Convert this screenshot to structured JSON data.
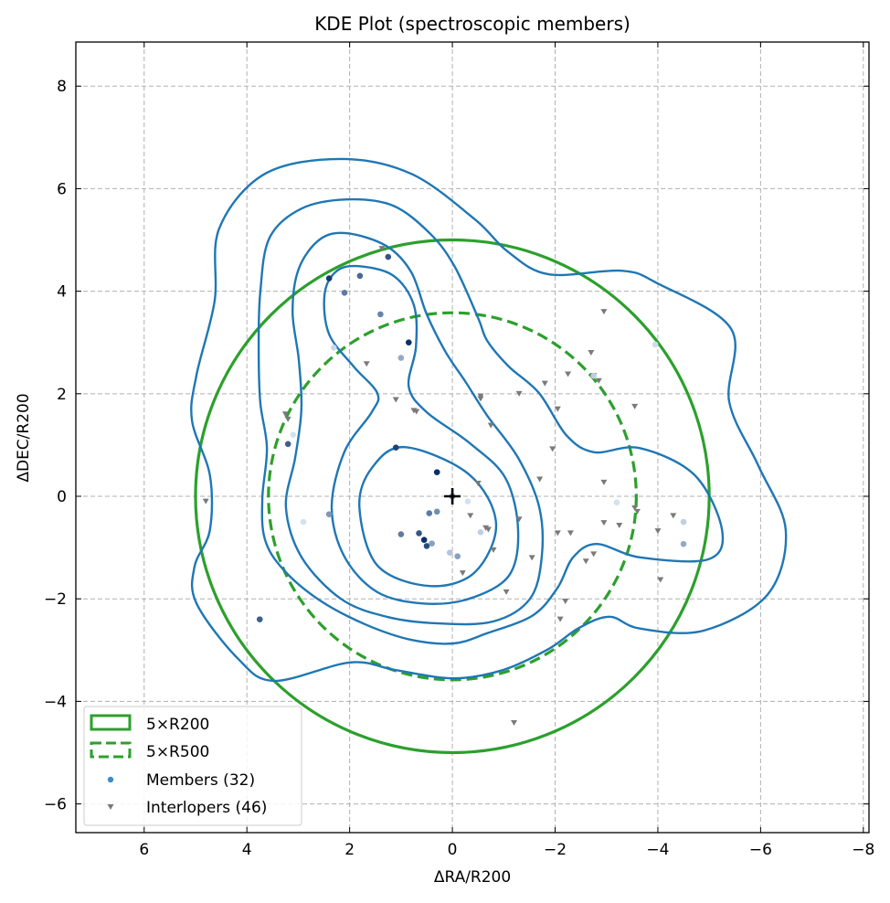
{
  "chart_data": {
    "type": "scatter",
    "title": "KDE Plot (spectroscopic members)",
    "xlabel": "ΔRA/R200",
    "ylabel": "ΔDEC/R200",
    "xlim": [
      7.33,
      -8.11
    ],
    "ylim": [
      -6.56,
      8.86
    ],
    "x_ticks": [
      6,
      4,
      2,
      0,
      -2,
      -4,
      -6,
      -8
    ],
    "x_tick_labels": [
      "6",
      "4",
      "2",
      "0",
      "−2",
      "−4",
      "−6",
      "−8"
    ],
    "y_ticks": [
      8,
      6,
      4,
      2,
      0,
      -2,
      -4,
      -6
    ],
    "y_tick_labels": [
      "8",
      "6",
      "4",
      "2",
      "0",
      "−2",
      "−4",
      "−6"
    ],
    "grid": true,
    "legend_position": "bottom-left",
    "legend": [
      {
        "label": "5×R200",
        "kind": "solid-circle"
      },
      {
        "label": "5×R500",
        "kind": "dashed-circle"
      },
      {
        "label": "Members (32)",
        "kind": "member"
      },
      {
        "label": "Interlopers (46)",
        "kind": "interloper"
      }
    ],
    "circles": [
      {
        "name": "5×R200",
        "radius": 5.0,
        "style": "solid"
      },
      {
        "name": "5×R500",
        "radius": 3.58,
        "style": "dashed"
      }
    ],
    "center": [
      0,
      0
    ],
    "colors": {
      "circle": "#2ca02c",
      "contour": "#1f77b4",
      "interloper": "#7a7a7a",
      "member_light": "#c6dbef",
      "member_dark": "#08306b"
    },
    "members": [
      [
        2.4,
        4.25,
        0.95
      ],
      [
        1.8,
        4.3,
        0.7
      ],
      [
        2.1,
        3.97,
        0.6
      ],
      [
        1.25,
        4.67,
        0.8
      ],
      [
        1.4,
        3.55,
        0.55
      ],
      [
        0.85,
        3.0,
        1.0
      ],
      [
        1.0,
        2.7,
        0.35
      ],
      [
        3.2,
        1.02,
        0.75
      ],
      [
        1.1,
        0.95,
        0.9
      ],
      [
        0.3,
        0.47,
        1.0
      ],
      [
        2.4,
        -0.35,
        0.45
      ],
      [
        0.45,
        -0.33,
        0.6
      ],
      [
        0.3,
        -0.3,
        0.5
      ],
      [
        0.65,
        -0.72,
        0.8
      ],
      [
        0.55,
        -0.85,
        1.0
      ],
      [
        0.5,
        -0.97,
        0.85
      ],
      [
        1.0,
        -0.74,
        0.6
      ],
      [
        0.4,
        -0.92,
        0.4
      ],
      [
        0.05,
        -1.1,
        0.2
      ],
      [
        -0.1,
        -1.17,
        0.4
      ],
      [
        -0.55,
        -0.7,
        0.15
      ],
      [
        0,
        0,
        0.55
      ],
      [
        3.75,
        -2.4,
        0.75
      ],
      [
        -3.2,
        -0.12,
        0.05
      ],
      [
        -4.5,
        -0.5,
        0.15
      ],
      [
        -4.5,
        -0.93,
        0.35
      ],
      [
        -3.95,
        2.96,
        0.08
      ],
      [
        -2.75,
        2.35,
        0.15
      ],
      [
        2.31,
        2.9,
        0.1
      ],
      [
        3.1,
        1.2,
        0.05
      ],
      [
        -0.3,
        -0.1,
        0.05
      ],
      [
        2.9,
        -0.5,
        0.05
      ]
    ],
    "interlopers": [
      [
        1.37,
        4.83
      ],
      [
        1.67,
        2.58
      ],
      [
        1.1,
        1.88
      ],
      [
        0.75,
        1.67
      ],
      [
        3.25,
        1.6
      ],
      [
        4.8,
        -0.1
      ],
      [
        -0.55,
        1.95
      ],
      [
        -0.75,
        1.38
      ],
      [
        -0.5,
        0.25
      ],
      [
        -0.35,
        -0.38
      ],
      [
        -0.65,
        -0.62
      ],
      [
        -0.8,
        -1.05
      ],
      [
        -1.05,
        -1.87
      ],
      [
        -1.3,
        2.0
      ],
      [
        -1.7,
        0.33
      ],
      [
        -1.55,
        -1.2
      ],
      [
        -1.8,
        2.2
      ],
      [
        -2.05,
        1.7
      ],
      [
        -2.25,
        2.38
      ],
      [
        -1.95,
        0.92
      ],
      [
        -2.05,
        -0.72
      ],
      [
        -2.3,
        -0.72
      ],
      [
        -2.2,
        -2.05
      ],
      [
        -2.1,
        -2.4
      ],
      [
        -2.6,
        -1.27
      ],
      [
        -2.75,
        -1.13
      ],
      [
        -2.7,
        2.8
      ],
      [
        -2.75,
        2.35
      ],
      [
        -2.85,
        2.25
      ],
      [
        -2.95,
        3.6
      ],
      [
        -2.95,
        0.27
      ],
      [
        -2.95,
        -0.52
      ],
      [
        -3.25,
        -0.57
      ],
      [
        -3.55,
        -0.23
      ],
      [
        -3.55,
        1.75
      ],
      [
        -4.0,
        -0.68
      ],
      [
        -4.05,
        -1.63
      ],
      [
        -4.3,
        -0.38
      ],
      [
        -1.2,
        -4.42
      ],
      [
        3.2,
        1.5
      ],
      [
        -0.55,
        1.9
      ],
      [
        -0.7,
        -0.65
      ],
      [
        -1.3,
        -0.45
      ],
      [
        0.7,
        1.65
      ],
      [
        -3.6,
        -0.3
      ],
      [
        -0.2,
        -1.5
      ]
    ],
    "contours": [
      [
        [
          4.54,
          5.22
        ],
        [
          3.65,
          6.29
        ],
        [
          2.17,
          6.58
        ],
        [
          0.8,
          6.29
        ],
        [
          -0.44,
          5.4
        ],
        [
          -1.07,
          4.78
        ],
        [
          -1.87,
          4.33
        ],
        [
          -3.29,
          4.4
        ],
        [
          -4.0,
          4.15
        ],
        [
          -5.43,
          3.26
        ],
        [
          -5.39,
          1.84
        ],
        [
          -5.96,
          0.59
        ],
        [
          -6.49,
          -0.66
        ],
        [
          -6.14,
          -1.91
        ],
        [
          -4.89,
          -2.62
        ],
        [
          -3.65,
          -2.58
        ],
        [
          -3.06,
          -2.35
        ],
        [
          -2.46,
          -2.57
        ],
        [
          -1.87,
          -2.98
        ],
        [
          -0.98,
          -3.39
        ],
        [
          -0.02,
          -3.55
        ],
        [
          1.1,
          -3.39
        ],
        [
          1.99,
          -3.24
        ],
        [
          3.47,
          -3.6
        ],
        [
          4.18,
          -3.16
        ],
        [
          4.98,
          -2.09
        ],
        [
          5.02,
          -1.37
        ],
        [
          4.72,
          -0.66
        ],
        [
          4.72,
          0.41
        ],
        [
          5.07,
          1.48
        ],
        [
          4.98,
          2.37
        ],
        [
          4.63,
          3.8
        ]
      ],
      [
        [
          2.05,
          5.79
        ],
        [
          1.16,
          5.67
        ],
        [
          0.44,
          5.13
        ],
        [
          -0.04,
          4.49
        ],
        [
          -0.5,
          3.48
        ],
        [
          -0.68,
          3.03
        ],
        [
          -1.1,
          2.53
        ],
        [
          -1.69,
          2.01
        ],
        [
          -2.22,
          1.19
        ],
        [
          -2.76,
          0.86
        ],
        [
          -3.65,
          0.94
        ],
        [
          -4.72,
          0.41
        ],
        [
          -5.25,
          -0.66
        ],
        [
          -4.98,
          -1.23
        ],
        [
          -3.65,
          -1.19
        ],
        [
          -2.81,
          -0.93
        ],
        [
          -2.35,
          -1.19
        ],
        [
          -2.05,
          -1.78
        ],
        [
          -1.57,
          -2.32
        ],
        [
          -0.68,
          -2.67
        ],
        [
          -0.02,
          -2.87
        ],
        [
          0.8,
          -2.8
        ],
        [
          1.69,
          -2.5
        ],
        [
          2.58,
          -2.03
        ],
        [
          3.29,
          -1.43
        ],
        [
          3.65,
          -0.84
        ],
        [
          3.7,
          -0.04
        ],
        [
          3.61,
          0.94
        ],
        [
          3.74,
          1.84
        ],
        [
          3.77,
          2.91
        ],
        [
          3.74,
          3.97
        ],
        [
          3.56,
          5.04
        ],
        [
          2.94,
          5.61
        ]
      ],
      [
        [
          2.05,
          5.13
        ],
        [
          1.28,
          4.88
        ],
        [
          0.8,
          4.37
        ],
        [
          0.5,
          3.55
        ],
        [
          0.14,
          2.83
        ],
        [
          -0.27,
          2.21
        ],
        [
          -0.68,
          1.57
        ],
        [
          -1.28,
          0.75
        ],
        [
          -1.69,
          -0.21
        ],
        [
          -1.74,
          -1.18
        ],
        [
          -1.51,
          -2.0
        ],
        [
          -0.8,
          -2.44
        ],
        [
          0.27,
          -2.48
        ],
        [
          1.28,
          -2.35
        ],
        [
          2.17,
          -2.0
        ],
        [
          2.94,
          -1.18
        ],
        [
          3.24,
          -0.21
        ],
        [
          3.06,
          0.75
        ],
        [
          2.94,
          1.69
        ],
        [
          2.99,
          2.66
        ],
        [
          3.11,
          3.6
        ],
        [
          2.99,
          4.44
        ],
        [
          2.58,
          5.01
        ]
      ],
      [
        [
          1.87,
          4.49
        ],
        [
          1.16,
          4.31
        ],
        [
          0.75,
          3.73
        ],
        [
          0.71,
          2.91
        ],
        [
          0.85,
          2.14
        ],
        [
          0.5,
          1.64
        ],
        [
          -0.32,
          1.05
        ],
        [
          -1.03,
          0.36
        ],
        [
          -1.28,
          -0.66
        ],
        [
          -1.1,
          -1.55
        ],
        [
          -0.32,
          -2.0
        ],
        [
          0.57,
          -2.09
        ],
        [
          1.46,
          -1.87
        ],
        [
          2.1,
          -1.18
        ],
        [
          2.35,
          -0.21
        ],
        [
          2.1,
          0.87
        ],
        [
          1.57,
          1.64
        ],
        [
          1.46,
          2.01
        ],
        [
          1.92,
          2.53
        ],
        [
          2.4,
          3.16
        ],
        [
          2.49,
          3.92
        ],
        [
          2.28,
          4.37
        ]
      ],
      [
        [
          0.93,
          0.96
        ],
        [
          -0.32,
          0.43
        ],
        [
          -0.85,
          -0.53
        ],
        [
          -0.44,
          -1.48
        ],
        [
          0.44,
          -1.75
        ],
        [
          1.46,
          -1.35
        ],
        [
          1.81,
          -0.21
        ],
        [
          1.57,
          0.55
        ]
      ]
    ]
  }
}
